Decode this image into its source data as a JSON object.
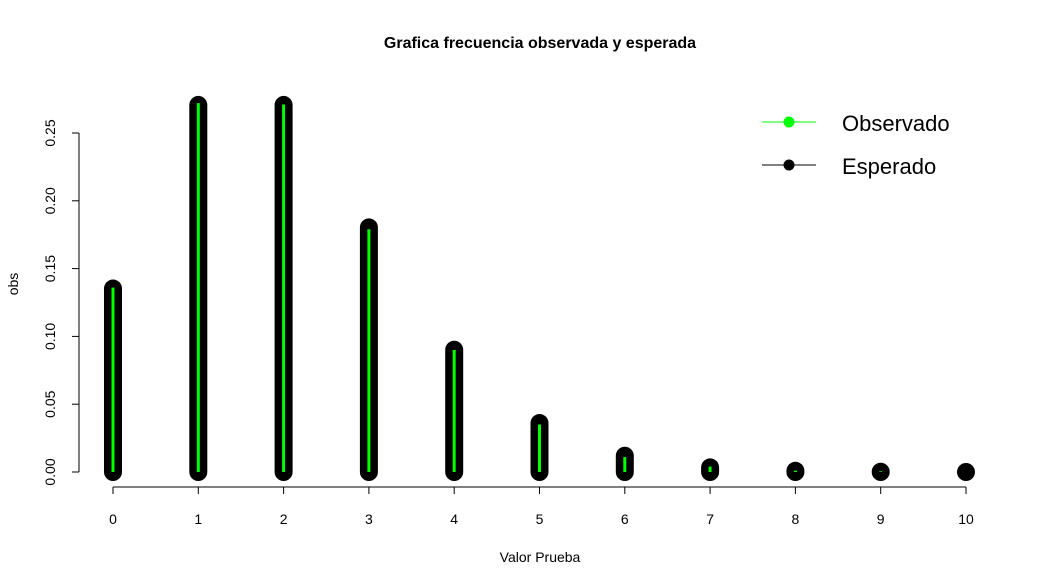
{
  "chart_data": {
    "type": "line",
    "title": "Grafica frecuencia observada y esperada",
    "xlabel": "Valor Prueba",
    "ylabel": "obs",
    "x": [
      0,
      1,
      2,
      3,
      4,
      5,
      6,
      7,
      8,
      9,
      10
    ],
    "xlim": [
      0,
      10
    ],
    "ylim": [
      0,
      0.28
    ],
    "x_ticks": [
      "0",
      "1",
      "2",
      "3",
      "4",
      "5",
      "6",
      "7",
      "8",
      "9",
      "10"
    ],
    "y_ticks": [
      "0.00",
      "0.05",
      "0.10",
      "0.15",
      "0.20",
      "0.25"
    ],
    "grid": false,
    "legend_position": "top-right",
    "series": [
      {
        "name": "Esperado",
        "style": "thick-vertical-lines",
        "color": "#000000",
        "values": [
          0.1353,
          0.2707,
          0.2707,
          0.1804,
          0.0902,
          0.0361,
          0.012,
          0.0034,
          0.0009,
          0.0002,
          0.0
        ]
      },
      {
        "name": "Observado",
        "style": "thin-vertical-lines",
        "color": "#00ff00",
        "values": [
          0.136,
          0.272,
          0.271,
          0.179,
          0.09,
          0.035,
          0.011,
          0.004,
          0.001,
          0.0005,
          0.0
        ]
      }
    ]
  }
}
